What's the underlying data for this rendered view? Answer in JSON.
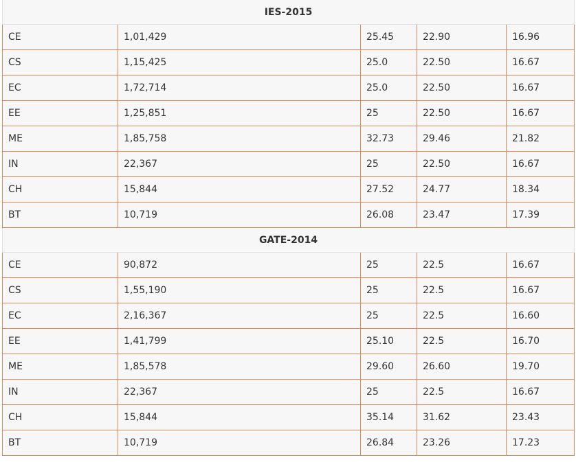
{
  "sections": [
    {
      "title": "IES-2015",
      "rows": [
        [
          "CE",
          "1,01,429",
          "25.45",
          "22.90",
          "16.96"
        ],
        [
          "CS",
          "1,15,425",
          "25.0",
          "22.50",
          "16.67"
        ],
        [
          "EC",
          "1,72,714",
          "25.0",
          "22.50",
          "16.67"
        ],
        [
          "EE",
          "1,25,851",
          "25",
          "22.50",
          "16.67"
        ],
        [
          "ME",
          "1,85,758",
          "32.73",
          "29.46",
          "21.82"
        ],
        [
          "IN",
          "22,367",
          "25",
          "22.50",
          "16.67"
        ],
        [
          "CH",
          "15,844",
          "27.52",
          "24.77",
          "18.34"
        ],
        [
          "BT",
          "10,719",
          "26.08",
          "23.47",
          "17.39"
        ]
      ]
    },
    {
      "title": "GATE-2014",
      "rows": [
        [
          "CE",
          "90,872",
          "25",
          "22.5",
          "16.67"
        ],
        [
          "CS",
          "1,55,190",
          "25",
          "22.5",
          "16.67"
        ],
        [
          "EC",
          "2,16,367",
          "25",
          "22.5",
          "16.60"
        ],
        [
          "EE",
          "1,41,799",
          "25.10",
          "22.5",
          "16.70"
        ],
        [
          "ME",
          "1,85,578",
          "29.60",
          "26.60",
          "19.70"
        ],
        [
          "IN",
          "22,367",
          "25",
          "22.5",
          "16.67"
        ],
        [
          "CH",
          "15,844",
          "35.14",
          "31.62",
          "23.43"
        ],
        [
          "BT",
          "10,719",
          "26.84",
          "23.26",
          "17.23"
        ]
      ]
    }
  ]
}
